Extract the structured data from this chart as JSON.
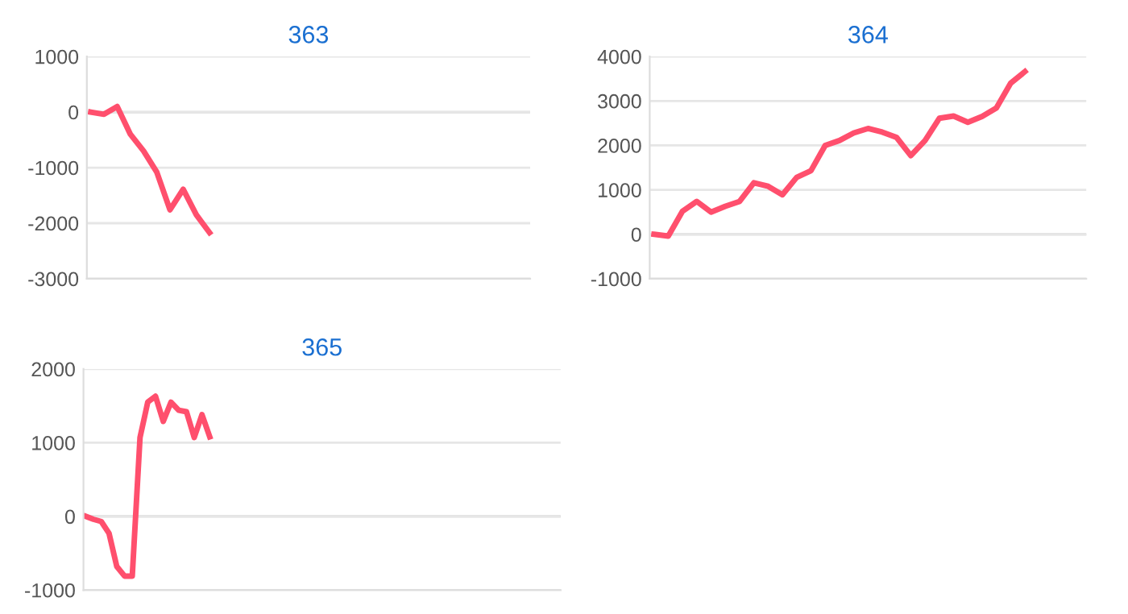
{
  "chart_data": [
    {
      "type": "line",
      "title": "363",
      "categories": [
        null,
        null,
        null,
        null,
        null,
        null,
        null,
        null,
        null,
        null,
        null,
        null,
        null,
        null,
        null,
        null,
        null,
        null,
        null,
        null,
        null,
        null,
        null,
        null,
        null,
        null,
        null,
        null,
        null,
        null,
        null,
        null,
        null,
        null
      ],
      "series": [
        {
          "color": "#ff4f6d",
          "values": [
            0,
            -40,
            100,
            -400,
            -700,
            -1080,
            -1760,
            -1390,
            -1850,
            -2170,
            null,
            null,
            null,
            null,
            null,
            null,
            null,
            null,
            null,
            null,
            null,
            null,
            null,
            null,
            null,
            null,
            null,
            null,
            null,
            null,
            null,
            null,
            null,
            null
          ]
        }
      ],
      "ylim": [
        -3000,
        1000
      ],
      "yticks": [
        -3000,
        -2000,
        -1000,
        0,
        1000
      ],
      "grid": "y",
      "marker": "none",
      "line_style": "solid"
    },
    {
      "type": "line",
      "title": "364",
      "categories": [
        null,
        null,
        null,
        null,
        null,
        null,
        null,
        null,
        null,
        null,
        null,
        null,
        null,
        null,
        null,
        null,
        null,
        null,
        null,
        null,
        null,
        null,
        null,
        null,
        null,
        null,
        null,
        null,
        null,
        null,
        null
      ],
      "series": [
        {
          "color": "#ff4f6d",
          "values": [
            0,
            -40,
            520,
            740,
            500,
            630,
            740,
            1160,
            1080,
            890,
            1280,
            1430,
            2000,
            2110,
            2280,
            2380,
            2300,
            2180,
            1770,
            2110,
            2610,
            2660,
            2520,
            2650,
            2840,
            3400,
            3660,
            null,
            null,
            null,
            null
          ]
        }
      ],
      "ylim": [
        -1000,
        4000
      ],
      "yticks": [
        -1000,
        0,
        1000,
        2000,
        3000,
        4000
      ],
      "grid": "y",
      "marker": "none",
      "line_style": "solid"
    },
    {
      "type": "line",
      "title": "365",
      "categories": [
        null,
        null,
        null,
        null,
        null,
        null,
        null,
        null,
        null,
        null,
        null,
        null,
        null,
        null,
        null,
        null,
        null,
        null,
        null,
        null,
        null,
        null,
        null,
        null,
        null,
        null,
        null,
        null,
        null,
        null,
        null,
        null,
        null,
        null,
        null,
        null,
        null,
        null,
        null,
        null,
        null,
        null,
        null,
        null,
        null,
        null,
        null,
        null,
        null,
        null,
        null,
        null,
        null,
        null,
        null,
        null,
        null,
        null,
        null,
        null,
        null,
        null
      ],
      "series": [
        {
          "color": "#ff4f6d",
          "values": [
            0,
            -40,
            -70,
            -230,
            -680,
            -810,
            -810,
            1070,
            1550,
            1630,
            1290,
            1550,
            1440,
            1420,
            1070,
            1380,
            1080,
            null,
            null,
            null,
            null,
            null,
            null,
            null,
            null,
            null,
            null,
            null,
            null,
            null,
            null,
            null,
            null,
            null,
            null,
            null,
            null,
            null,
            null,
            null,
            null,
            null,
            null,
            null,
            null,
            null,
            null,
            null,
            null,
            null,
            null,
            null,
            null,
            null,
            null,
            null,
            null,
            null,
            null,
            null,
            null,
            null
          ]
        }
      ],
      "ylim": [
        -1000,
        2000
      ],
      "yticks": [
        -1000,
        0,
        1000,
        2000
      ],
      "grid": "y",
      "marker": "none",
      "line_style": "solid"
    }
  ]
}
